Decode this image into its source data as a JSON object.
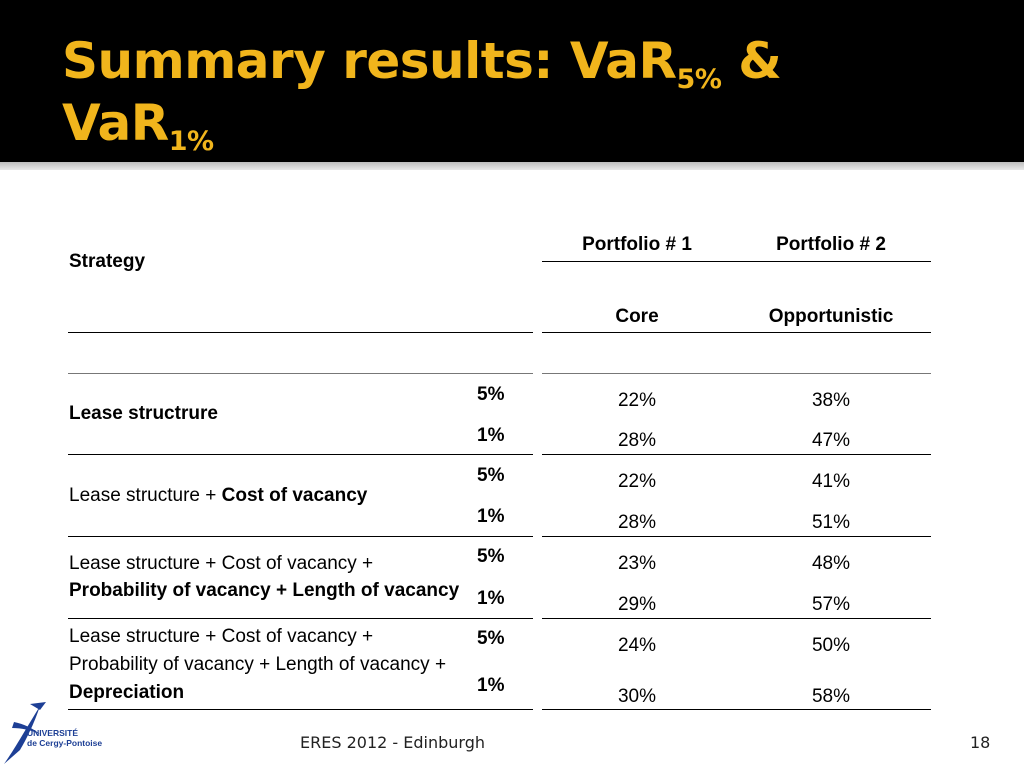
{
  "title": {
    "main": "Summary results: VaR",
    "sub1": "5%",
    "amp": " &",
    "line2": "VaR",
    "sub2": "1%"
  },
  "table": {
    "strategy_header": "Strategy",
    "portfolio1": "Portfolio # 1",
    "portfolio2": "Portfolio # 2",
    "core": "Core",
    "opportunistic": "Opportunistic",
    "rows": [
      {
        "label": "Lease structrure",
        "lvl5": "5%",
        "lvl1": "1%",
        "p1_5": "22%",
        "p2_5": "38%",
        "p1_1": "28%",
        "p2_1": "47%"
      },
      {
        "label_plain": "Lease structure + ",
        "label_bold": "Cost of vacancy",
        "lvl5": "5%",
        "lvl1": "1%",
        "p1_5": "22%",
        "p2_5": "41%",
        "p1_1": "28%",
        "p2_1": "51%"
      },
      {
        "label_line1": "Lease structure + Cost of vacancy +",
        "label_line2_bold": "Probability of vacancy + Length of vacancy",
        "lvl5": "5%",
        "lvl1": "1%",
        "p1_5": "23%",
        "p2_5": "48%",
        "p1_1": "29%",
        "p2_1": "57%"
      },
      {
        "label_line1": "Lease structure + Cost of vacancy +",
        "label_line2": "Probability of vacancy + Length of vacancy +",
        "label_line3_bold": "Depreciation",
        "lvl5": "5%",
        "lvl1": "1%",
        "p1_5": "24%",
        "p2_5": "50%",
        "p1_1": "30%",
        "p2_1": "58%"
      }
    ]
  },
  "footer": {
    "center": "ERES 2012 - Edinburgh",
    "page": "18"
  },
  "logo": {
    "line1": "UNIVERSITÉ",
    "line2": "de Cergy-Pontoise"
  },
  "colors": {
    "title": "#f1b51c",
    "header_bg": "#000000",
    "logo_blue": "#1d3f95"
  }
}
